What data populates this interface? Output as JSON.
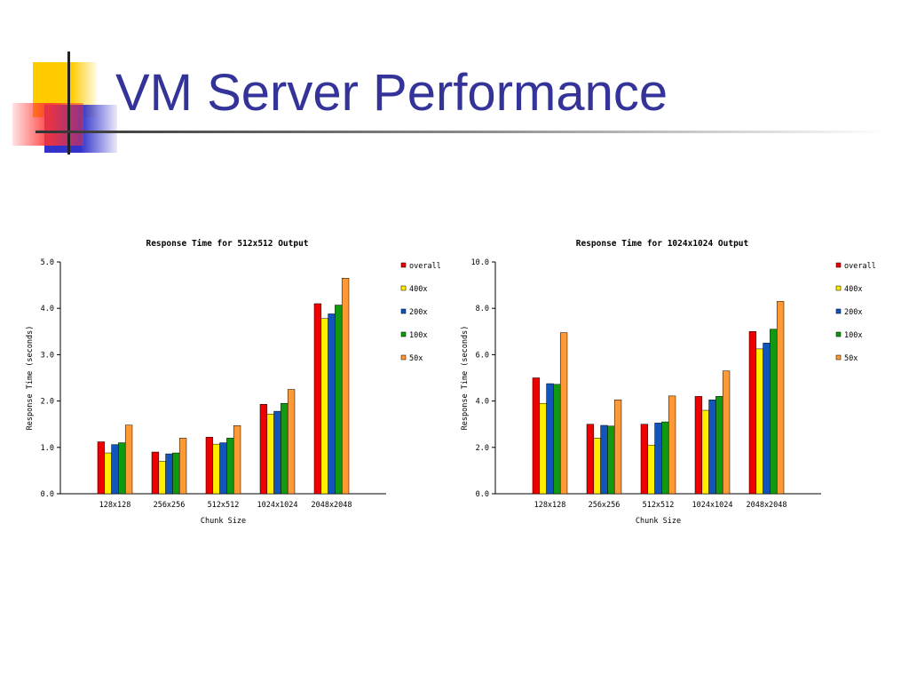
{
  "slide": {
    "title": "VM Server Performance",
    "colors": {
      "title": "#333399",
      "deco_yellow": "#ffcc00",
      "deco_red": "#ff3333",
      "deco_blue": "#3333cc"
    }
  },
  "chart_data": [
    {
      "type": "bar",
      "title": "Response Time for 512x512 Output",
      "xlabel": "Chunk Size",
      "ylabel": "Response Time (seconds)",
      "categories": [
        "128x128",
        "256x256",
        "512x512",
        "1024x1024",
        "2048x2048"
      ],
      "ylim": [
        0,
        5
      ],
      "yticks": [
        "0.0",
        "1.0",
        "2.0",
        "3.0",
        "4.0",
        "5.0"
      ],
      "legend_position": "right",
      "series": [
        {
          "name": "overall",
          "color": "#ee0000",
          "values": [
            1.12,
            0.9,
            1.22,
            1.93,
            4.1
          ]
        },
        {
          "name": "400x",
          "color": "#ffee00",
          "values": [
            0.88,
            0.7,
            1.07,
            1.72,
            3.78
          ]
        },
        {
          "name": "200x",
          "color": "#1155bb",
          "values": [
            1.06,
            0.86,
            1.1,
            1.78,
            3.88
          ]
        },
        {
          "name": "100x",
          "color": "#119911",
          "values": [
            1.1,
            0.88,
            1.2,
            1.95,
            4.07
          ]
        },
        {
          "name": "50x",
          "color": "#ff9933",
          "values": [
            1.48,
            1.2,
            1.47,
            2.25,
            4.65
          ]
        }
      ]
    },
    {
      "type": "bar",
      "title": "Response Time for 1024x1024 Output",
      "xlabel": "Chunk Size",
      "ylabel": "Response Time (seconds)",
      "categories": [
        "128x128",
        "256x256",
        "512x512",
        "1024x1024",
        "2048x2048"
      ],
      "ylim": [
        0,
        10
      ],
      "yticks": [
        "0.0",
        "2.0",
        "4.0",
        "6.0",
        "8.0",
        "10.0"
      ],
      "legend_position": "right",
      "series": [
        {
          "name": "overall",
          "color": "#ee0000",
          "values": [
            5.0,
            3.0,
            3.0,
            4.2,
            7.0
          ]
        },
        {
          "name": "400x",
          "color": "#ffee00",
          "values": [
            3.9,
            2.4,
            2.1,
            3.6,
            6.25
          ]
        },
        {
          "name": "200x",
          "color": "#1155bb",
          "values": [
            4.75,
            2.95,
            3.05,
            4.05,
            6.5
          ]
        },
        {
          "name": "100x",
          "color": "#119911",
          "values": [
            4.72,
            2.92,
            3.1,
            4.2,
            7.1
          ]
        },
        {
          "name": "50x",
          "color": "#ff9933",
          "values": [
            6.95,
            4.05,
            4.22,
            5.3,
            8.3
          ]
        }
      ]
    }
  ]
}
